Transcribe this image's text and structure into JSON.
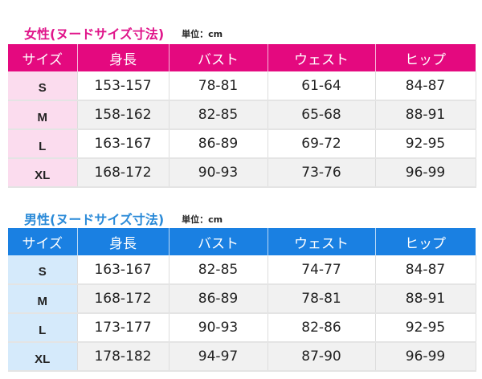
{
  "colors": {
    "female": "#e4097f",
    "female_light": "#fbdcee",
    "female_title": "#e0148a",
    "male": "#1a80e2",
    "male_light": "#d5eafb",
    "male_title": "#2a8ad8"
  },
  "headers": [
    "サイズ",
    "身長",
    "バスト",
    "ウェスト",
    "ヒップ"
  ],
  "female": {
    "title": "女性(ヌードサイズ寸法)",
    "unit": "単位：cm",
    "rows": [
      [
        "S",
        "153-157",
        "78-81",
        "61-64",
        "84-87"
      ],
      [
        "M",
        "158-162",
        "82-85",
        "65-68",
        "88-91"
      ],
      [
        "L",
        "163-167",
        "86-89",
        "69-72",
        "92-95"
      ],
      [
        "XL",
        "168-172",
        "90-93",
        "73-76",
        "96-99"
      ]
    ]
  },
  "male": {
    "title": "男性(ヌードサイズ寸法)",
    "unit": "単位：cm",
    "rows": [
      [
        "S",
        "163-167",
        "82-85",
        "74-77",
        "84-87"
      ],
      [
        "M",
        "168-172",
        "86-89",
        "78-81",
        "88-91"
      ],
      [
        "L",
        "173-177",
        "90-93",
        "82-86",
        "92-95"
      ],
      [
        "XL",
        "178-182",
        "94-97",
        "87-90",
        "96-99"
      ]
    ]
  }
}
